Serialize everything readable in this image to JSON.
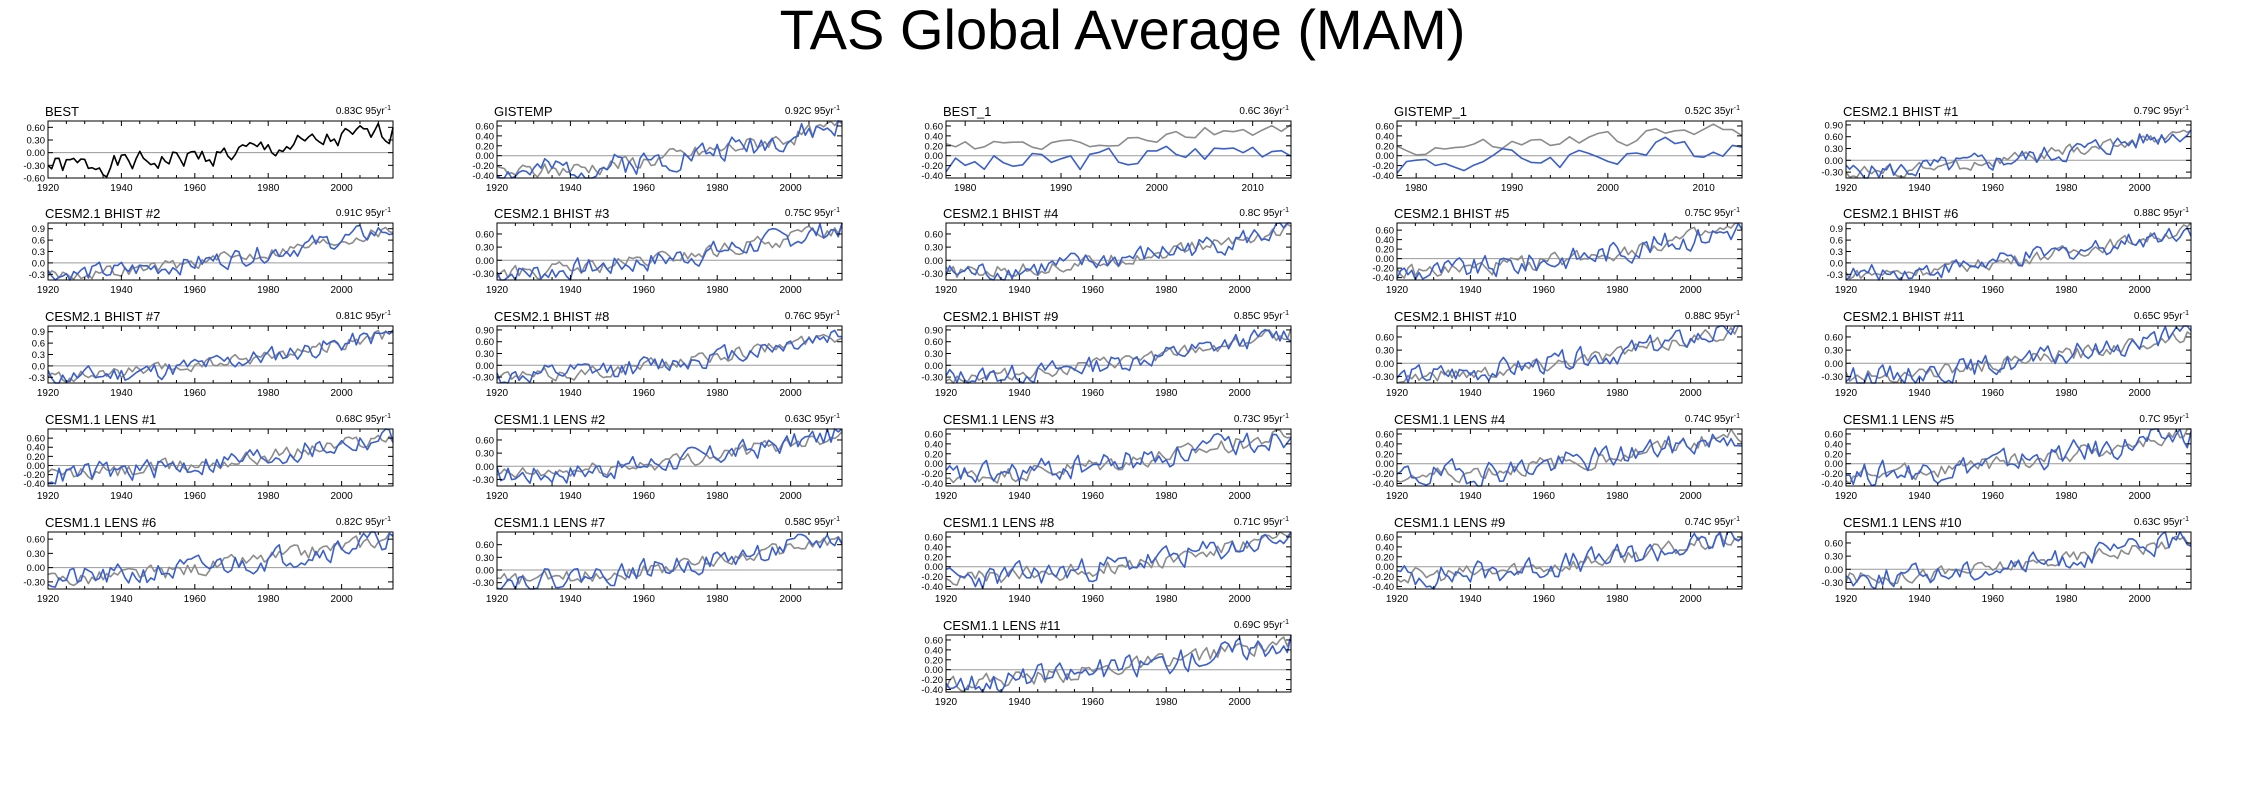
{
  "figure": {
    "title": "TAS Global Average (MAM)",
    "trend_unit": "yr",
    "trend_unit_exponent": "-1",
    "colors": {
      "observed": "#000000",
      "reference": "#8c8c8c",
      "model": "#3a5fcd",
      "zero_line": "#9a9a9a"
    }
  },
  "chart_data": [
    {
      "type": "line",
      "panel_title": "BEST",
      "trend": "0.83C 95",
      "xlim": [
        1920,
        2014
      ],
      "xticks": [
        1920,
        1940,
        1960,
        1980,
        2000
      ],
      "ylim": [
        -0.6,
        0.75
      ],
      "yticks": [
        "0.60",
        "0.30",
        "0.00",
        "-0.30",
        "-0.60"
      ],
      "single_series": true,
      "seed": 1,
      "start_value": -0.32,
      "end_value": 0.5
    },
    {
      "type": "line",
      "panel_title": "GISTEMP",
      "trend": "0.92C 95",
      "xlim": [
        1920,
        2014
      ],
      "xticks": [
        1920,
        1940,
        1960,
        1980,
        2000
      ],
      "ylim": [
        -0.45,
        0.7
      ],
      "yticks": [
        "0.60",
        "0.40",
        "0.20",
        "0.00",
        "-0.20",
        "-0.40"
      ],
      "seed": 2,
      "start_value": -0.35,
      "end_value": 0.6
    },
    {
      "type": "line",
      "panel_title": "BEST_1",
      "trend": "0.6C 36",
      "xlim": [
        1978,
        2014
      ],
      "xticks": [
        1980,
        1990,
        2000,
        2010
      ],
      "ylim": [
        -0.45,
        0.7
      ],
      "yticks": [
        "0.60",
        "0.40",
        "0.20",
        "0.00",
        "-0.20",
        "-0.40"
      ],
      "seed": 3,
      "start_value": -0.2,
      "end_value": 0.25,
      "offset": 0.35
    },
    {
      "type": "line",
      "panel_title": "GISTEMP_1",
      "trend": "0.52C 35",
      "xlim": [
        1978,
        2014
      ],
      "xticks": [
        1980,
        1990,
        2000,
        2010
      ],
      "ylim": [
        -0.45,
        0.7
      ],
      "yticks": [
        "0.60",
        "0.40",
        "0.20",
        "0.00",
        "-0.20",
        "-0.40"
      ],
      "seed": 4,
      "start_value": -0.15,
      "end_value": 0.25,
      "offset": 0.3
    },
    {
      "type": "line",
      "panel_title": "CESM2.1 BHIST #1",
      "trend": "0.79C 95",
      "xlim": [
        1920,
        2014
      ],
      "xticks": [
        1920,
        1940,
        1960,
        1980,
        2000
      ],
      "ylim": [
        -0.45,
        1.0
      ],
      "yticks": [
        "0.90",
        "0.60",
        "0.30",
        "0.00",
        "-0.30"
      ],
      "seed": 5,
      "start_value": -0.3,
      "end_value": 0.75
    },
    {
      "type": "line",
      "panel_title": "CESM2.1 BHIST #2",
      "trend": "0.91C 95",
      "xlim": [
        1920,
        2014
      ],
      "xticks": [
        1920,
        1940,
        1960,
        1980,
        2000
      ],
      "ylim": [
        -0.45,
        1.05
      ],
      "yticks": [
        "0.9",
        "0.6",
        "0.3",
        "0.0",
        "-0.3"
      ],
      "seed": 6,
      "start_value": -0.3,
      "end_value": 0.9
    },
    {
      "type": "line",
      "panel_title": "CESM2.1 BHIST #3",
      "trend": "0.75C 95",
      "xlim": [
        1920,
        2014
      ],
      "xticks": [
        1920,
        1940,
        1960,
        1980,
        2000
      ],
      "ylim": [
        -0.45,
        0.85
      ],
      "yticks": [
        "0.60",
        "0.30",
        "0.00",
        "-0.30"
      ],
      "seed": 7,
      "start_value": -0.3,
      "end_value": 0.75
    },
    {
      "type": "line",
      "panel_title": "CESM2.1 BHIST #4",
      "trend": "0.8C 95",
      "xlim": [
        1920,
        2014
      ],
      "xticks": [
        1920,
        1940,
        1960,
        1980,
        2000
      ],
      "ylim": [
        -0.45,
        0.85
      ],
      "yticks": [
        "0.60",
        "0.30",
        "0.00",
        "-0.30"
      ],
      "seed": 8,
      "start_value": -0.3,
      "end_value": 0.7
    },
    {
      "type": "line",
      "panel_title": "CESM2.1 BHIST #5",
      "trend": "0.75C 95",
      "xlim": [
        1920,
        2014
      ],
      "xticks": [
        1920,
        1940,
        1960,
        1980,
        2000
      ],
      "ylim": [
        -0.45,
        0.75
      ],
      "yticks": [
        "0.60",
        "0.40",
        "0.20",
        "0.00",
        "-0.20",
        "-0.40"
      ],
      "seed": 9,
      "start_value": -0.3,
      "end_value": 0.65
    },
    {
      "type": "line",
      "panel_title": "CESM2.1 BHIST #6",
      "trend": "0.88C 95",
      "xlim": [
        1920,
        2014
      ],
      "xticks": [
        1920,
        1940,
        1960,
        1980,
        2000
      ],
      "ylim": [
        -0.45,
        1.05
      ],
      "yticks": [
        "0.9",
        "0.6",
        "0.3",
        "0.0",
        "-0.3"
      ],
      "seed": 10,
      "start_value": -0.3,
      "end_value": 0.9
    },
    {
      "type": "line",
      "panel_title": "CESM2.1 BHIST #7",
      "trend": "0.81C 95",
      "xlim": [
        1920,
        2014
      ],
      "xticks": [
        1920,
        1940,
        1960,
        1980,
        2000
      ],
      "ylim": [
        -0.45,
        1.05
      ],
      "yticks": [
        "0.9",
        "0.6",
        "0.3",
        "0.0",
        "-0.3"
      ],
      "seed": 11,
      "start_value": -0.3,
      "end_value": 0.85
    },
    {
      "type": "line",
      "panel_title": "CESM2.1 BHIST #8",
      "trend": "0.76C 95",
      "xlim": [
        1920,
        2014
      ],
      "xticks": [
        1920,
        1940,
        1960,
        1980,
        2000
      ],
      "ylim": [
        -0.45,
        1.0
      ],
      "yticks": [
        "0.90",
        "0.60",
        "0.30",
        "0.00",
        "-0.30"
      ],
      "seed": 12,
      "start_value": -0.3,
      "end_value": 0.8
    },
    {
      "type": "line",
      "panel_title": "CESM2.1 BHIST #9",
      "trend": "0.85C 95",
      "xlim": [
        1920,
        2014
      ],
      "xticks": [
        1920,
        1940,
        1960,
        1980,
        2000
      ],
      "ylim": [
        -0.45,
        1.0
      ],
      "yticks": [
        "0.90",
        "0.60",
        "0.30",
        "0.00",
        "-0.30"
      ],
      "seed": 13,
      "start_value": -0.3,
      "end_value": 0.85
    },
    {
      "type": "line",
      "panel_title": "CESM2.1 BHIST #10",
      "trend": "0.88C 95",
      "xlim": [
        1920,
        2014
      ],
      "xticks": [
        1920,
        1940,
        1960,
        1980,
        2000
      ],
      "ylim": [
        -0.45,
        0.85
      ],
      "yticks": [
        "0.60",
        "0.30",
        "0.00",
        "-0.30"
      ],
      "seed": 14,
      "start_value": -0.3,
      "end_value": 0.8
    },
    {
      "type": "line",
      "panel_title": "CESM2.1 BHIST #11",
      "trend": "0.65C 95",
      "xlim": [
        1920,
        2014
      ],
      "xticks": [
        1920,
        1940,
        1960,
        1980,
        2000
      ],
      "ylim": [
        -0.45,
        0.85
      ],
      "yticks": [
        "0.60",
        "0.30",
        "0.00",
        "-0.30"
      ],
      "seed": 15,
      "start_value": -0.3,
      "end_value": 0.7
    },
    {
      "type": "line",
      "panel_title": "CESM1.1 LENS #1",
      "trend": "0.68C 95",
      "xlim": [
        1920,
        2014
      ],
      "xticks": [
        1920,
        1940,
        1960,
        1980,
        2000
      ],
      "ylim": [
        -0.45,
        0.8
      ],
      "yticks": [
        "0.60",
        "0.40",
        "0.20",
        "0.00",
        "-0.20",
        "-0.40"
      ],
      "seed": 16,
      "start_value": -0.2,
      "end_value": 0.65
    },
    {
      "type": "line",
      "panel_title": "CESM1.1 LENS #2",
      "trend": "0.63C 95",
      "xlim": [
        1920,
        2014
      ],
      "xticks": [
        1920,
        1940,
        1960,
        1980,
        2000
      ],
      "ylim": [
        -0.45,
        0.85
      ],
      "yticks": [
        "0.60",
        "0.30",
        "0.00",
        "-0.30"
      ],
      "seed": 17,
      "start_value": -0.2,
      "end_value": 0.75
    },
    {
      "type": "line",
      "panel_title": "CESM1.1 LENS #3",
      "trend": "0.73C 95",
      "xlim": [
        1920,
        2014
      ],
      "xticks": [
        1920,
        1940,
        1960,
        1980,
        2000
      ],
      "ylim": [
        -0.45,
        0.7
      ],
      "yticks": [
        "0.60",
        "0.40",
        "0.20",
        "0.00",
        "-0.20",
        "-0.40"
      ],
      "seed": 18,
      "start_value": -0.25,
      "end_value": 0.6
    },
    {
      "type": "line",
      "panel_title": "CESM1.1 LENS #4",
      "trend": "0.74C 95",
      "xlim": [
        1920,
        2014
      ],
      "xticks": [
        1920,
        1940,
        1960,
        1980,
        2000
      ],
      "ylim": [
        -0.45,
        0.7
      ],
      "yticks": [
        "0.60",
        "0.40",
        "0.20",
        "0.00",
        "-0.20",
        "-0.40"
      ],
      "seed": 19,
      "start_value": -0.25,
      "end_value": 0.6
    },
    {
      "type": "line",
      "panel_title": "CESM1.1 LENS #5",
      "trend": "0.7C 95",
      "xlim": [
        1920,
        2014
      ],
      "xticks": [
        1920,
        1940,
        1960,
        1980,
        2000
      ],
      "ylim": [
        -0.45,
        0.7
      ],
      "yticks": [
        "0.60",
        "0.40",
        "0.20",
        "0.00",
        "-0.20",
        "-0.40"
      ],
      "seed": 20,
      "start_value": -0.2,
      "end_value": 0.6
    },
    {
      "type": "line",
      "panel_title": "CESM1.1 LENS #6",
      "trend": "0.82C 95",
      "xlim": [
        1920,
        2014
      ],
      "xticks": [
        1920,
        1940,
        1960,
        1980,
        2000
      ],
      "ylim": [
        -0.45,
        0.75
      ],
      "yticks": [
        "0.60",
        "0.30",
        "0.00",
        "-0.30"
      ],
      "seed": 21,
      "start_value": -0.25,
      "end_value": 0.65
    },
    {
      "type": "line",
      "panel_title": "CESM1.1 LENS #7",
      "trend": "0.58C 95",
      "xlim": [
        1920,
        2014
      ],
      "xticks": [
        1920,
        1940,
        1960,
        1980,
        2000
      ],
      "ylim": [
        -0.45,
        0.9
      ],
      "yticks": [
        "0.60",
        "0.30",
        "0.00",
        "-0.30"
      ],
      "seed": 22,
      "start_value": -0.25,
      "end_value": 0.75
    },
    {
      "type": "line",
      "panel_title": "CESM1.1 LENS #8",
      "trend": "0.71C 95",
      "xlim": [
        1920,
        2014
      ],
      "xticks": [
        1920,
        1940,
        1960,
        1980,
        2000
      ],
      "ylim": [
        -0.45,
        0.7
      ],
      "yticks": [
        "0.60",
        "0.40",
        "0.20",
        "0.00",
        "-0.20",
        "-0.40"
      ],
      "seed": 23,
      "start_value": -0.25,
      "end_value": 0.6
    },
    {
      "type": "line",
      "panel_title": "CESM1.1 LENS #9",
      "trend": "0.74C 95",
      "xlim": [
        1920,
        2014
      ],
      "xticks": [
        1920,
        1940,
        1960,
        1980,
        2000
      ],
      "ylim": [
        -0.45,
        0.7
      ],
      "yticks": [
        "0.60",
        "0.40",
        "0.20",
        "0.00",
        "-0.20",
        "-0.40"
      ],
      "seed": 24,
      "start_value": -0.2,
      "end_value": 0.6
    },
    {
      "type": "line",
      "panel_title": "CESM1.1 LENS #10",
      "trend": "0.63C 95",
      "xlim": [
        1920,
        2014
      ],
      "xticks": [
        1920,
        1940,
        1960,
        1980,
        2000
      ],
      "ylim": [
        -0.45,
        0.85
      ],
      "yticks": [
        "0.60",
        "0.30",
        "0.00",
        "-0.30"
      ],
      "seed": 25,
      "start_value": -0.2,
      "end_value": 0.7
    },
    {
      "type": "line",
      "panel_title": "CESM1.1 LENS #11",
      "trend": "0.69C 95",
      "xlim": [
        1920,
        2014
      ],
      "xticks": [
        1920,
        1940,
        1960,
        1980,
        2000
      ],
      "ylim": [
        -0.45,
        0.7
      ],
      "yticks": [
        "0.60",
        "0.40",
        "0.20",
        "0.00",
        "-0.20",
        "-0.40"
      ],
      "seed": 26,
      "start_value": -0.25,
      "end_value": 0.6
    }
  ]
}
